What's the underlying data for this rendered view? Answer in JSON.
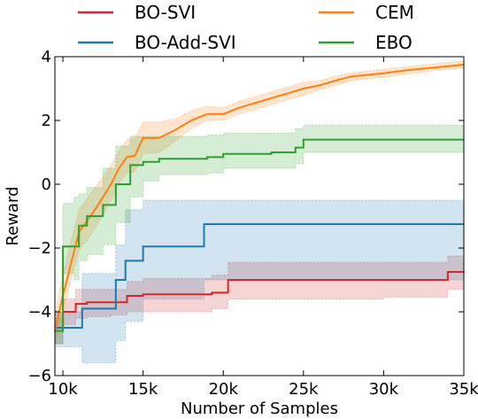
{
  "chart_data": {
    "type": "line",
    "title": "",
    "xlabel": "Number of Samples",
    "ylabel": "Reward",
    "xlim": [
      9500,
      35000
    ],
    "ylim": [
      -6,
      4
    ],
    "x_ticks": [
      10000,
      15000,
      20000,
      25000,
      30000,
      35000
    ],
    "x_tick_labels": [
      "10k",
      "15k",
      "20k",
      "25k",
      "30k",
      "35k"
    ],
    "y_ticks": [
      -6,
      -4,
      -2,
      0,
      2,
      4
    ],
    "y_tick_labels": [
      "−6",
      "−4",
      "−2",
      "0",
      "2",
      "4"
    ],
    "grid": false,
    "legend_position": "top",
    "series": [
      {
        "name": "BO-SVI",
        "color": "#d62728",
        "step": true,
        "x": [
          9500,
          10000,
          10800,
          11500,
          13000,
          14000,
          15000,
          19300,
          20300,
          22500,
          25000,
          27500,
          30000,
          33000,
          34000,
          35000
        ],
        "y": [
          -4.5,
          -4.0,
          -3.75,
          -3.7,
          -3.7,
          -3.5,
          -3.45,
          -3.4,
          -3.0,
          -3.0,
          -3.0,
          -3.0,
          -3.0,
          -3.0,
          -2.75,
          -2.75
        ],
        "lower": [
          -5.0,
          -4.4,
          -4.2,
          -4.15,
          -4.1,
          -4.0,
          -4.0,
          -3.9,
          -3.6,
          -3.6,
          -3.6,
          -3.6,
          -3.55,
          -3.55,
          -3.3,
          -3.25
        ],
        "upper": [
          -4.0,
          -3.6,
          -3.3,
          -3.3,
          -3.3,
          -3.05,
          -2.95,
          -2.85,
          -2.45,
          -2.45,
          -2.45,
          -2.45,
          -2.45,
          -2.45,
          -2.25,
          -2.2
        ]
      },
      {
        "name": "BO-Add-SVI",
        "color": "#1f77b4",
        "step": true,
        "x": [
          9500,
          10100,
          11200,
          13300,
          13900,
          15000,
          18800,
          20000,
          25000,
          30000,
          35000
        ],
        "y": [
          -4.5,
          -4.5,
          -3.9,
          -3.0,
          -2.4,
          -1.95,
          -1.25,
          -1.25,
          -1.25,
          -1.25,
          -1.25
        ],
        "lower": [
          -5.1,
          -5.1,
          -5.6,
          -4.9,
          -4.3,
          -3.6,
          -3.0,
          -3.0,
          -3.0,
          -3.0,
          -3.0
        ],
        "upper": [
          -4.0,
          -4.0,
          -2.8,
          -1.9,
          -0.8,
          -0.5,
          -0.5,
          -0.5,
          -0.5,
          -0.5,
          -0.5
        ]
      },
      {
        "name": "CEM",
        "color": "#ff7f0e",
        "step": false,
        "x": [
          9500,
          10000,
          11000,
          12000,
          13000,
          13500,
          14000,
          14500,
          15000,
          16000,
          17000,
          18000,
          19000,
          20000,
          21000,
          22000,
          23000,
          24000,
          25000,
          26000,
          27000,
          28000,
          29000,
          30000,
          31000,
          32000,
          33000,
          34000,
          35000
        ],
        "y": [
          -4.6,
          -3.5,
          -1.5,
          -0.8,
          0.0,
          0.5,
          0.85,
          0.9,
          1.45,
          1.45,
          1.7,
          2.0,
          2.2,
          2.2,
          2.4,
          2.55,
          2.7,
          2.85,
          3.0,
          3.1,
          3.25,
          3.38,
          3.43,
          3.48,
          3.55,
          3.6,
          3.65,
          3.7,
          3.75
        ],
        "lower": [
          -5.0,
          -4.0,
          -2.1,
          -1.4,
          -0.5,
          0.05,
          0.35,
          0.4,
          0.95,
          1.0,
          1.35,
          1.75,
          2.0,
          2.0,
          2.2,
          2.35,
          2.5,
          2.65,
          2.8,
          2.95,
          3.1,
          3.25,
          3.3,
          3.35,
          3.42,
          3.48,
          3.55,
          3.6,
          3.65
        ],
        "upper": [
          -4.1,
          -2.8,
          -0.8,
          -0.1,
          0.6,
          1.05,
          1.4,
          1.45,
          1.95,
          1.95,
          2.05,
          2.3,
          2.45,
          2.4,
          2.6,
          2.75,
          2.9,
          3.05,
          3.2,
          3.25,
          3.4,
          3.5,
          3.55,
          3.6,
          3.67,
          3.72,
          3.77,
          3.82,
          3.87
        ]
      },
      {
        "name": "EBO",
        "color": "#2ca02c",
        "step": true,
        "x": [
          9500,
          10000,
          10700,
          11000,
          11500,
          12500,
          13300,
          14200,
          15000,
          16000,
          19000,
          20000,
          23000,
          24500,
          25000,
          27500,
          30000,
          35000
        ],
        "y": [
          -4.6,
          -1.95,
          -1.95,
          -1.3,
          -1.0,
          -0.65,
          0.0,
          0.6,
          0.7,
          0.8,
          0.85,
          0.95,
          1.0,
          1.15,
          1.4,
          1.4,
          1.4,
          1.4
        ],
        "lower": [
          -5.0,
          -2.8,
          -3.0,
          -2.4,
          -2.2,
          -1.9,
          -1.2,
          -0.4,
          0.1,
          0.3,
          0.35,
          0.5,
          0.5,
          0.65,
          1.0,
          1.0,
          1.0,
          1.0
        ],
        "upper": [
          -4.2,
          -0.6,
          -0.4,
          -0.3,
          -0.1,
          0.5,
          1.2,
          1.5,
          1.5,
          1.5,
          1.55,
          1.6,
          1.6,
          1.75,
          1.85,
          1.85,
          1.85,
          1.85
        ]
      }
    ]
  }
}
